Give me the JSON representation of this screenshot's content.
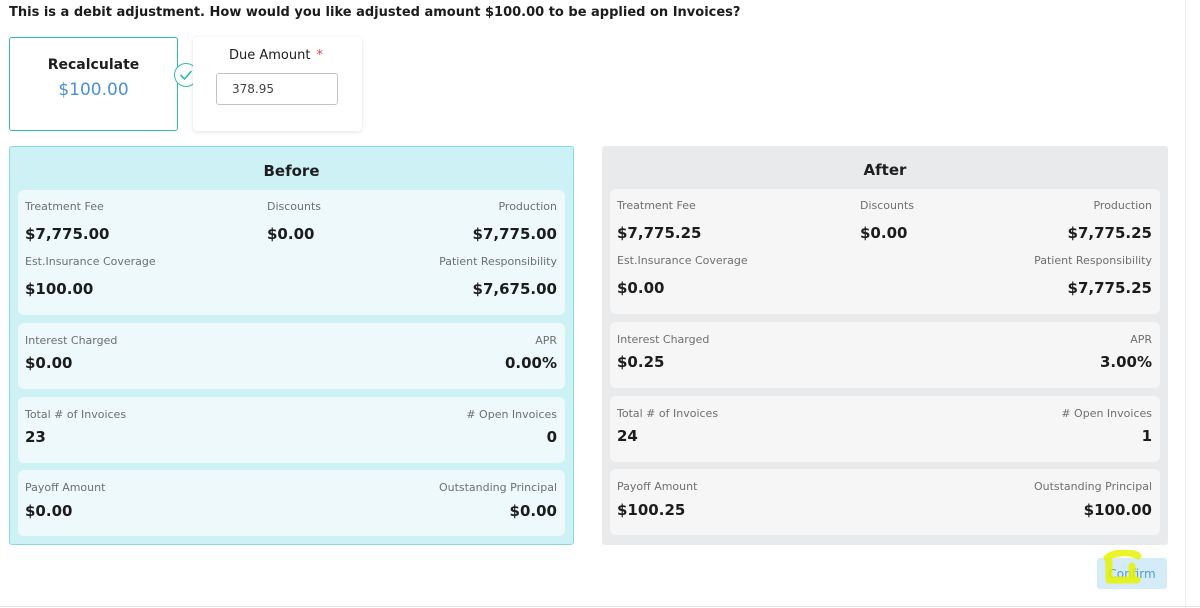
{
  "question": "This is a debit adjustment. How would you like adjusted amount $100.00 to be applied on Invoices?",
  "recalculate": {
    "title": "Recalculate",
    "amount": "$100.00"
  },
  "due_amount": {
    "label": "Due Amount",
    "required_mark": "*",
    "value": "378.95"
  },
  "before": {
    "title": "Before",
    "treatment_fee": {
      "label": "Treatment Fee",
      "value": "$7,775.00"
    },
    "discounts": {
      "label": "Discounts",
      "value": "$0.00"
    },
    "production": {
      "label": "Production",
      "value": "$7,775.00"
    },
    "est_insurance": {
      "label": "Est.Insurance Coverage",
      "value": "$100.00"
    },
    "patient_resp": {
      "label": "Patient Responsibility",
      "value": "$7,675.00"
    },
    "interest": {
      "label": "Interest Charged",
      "value": "$0.00"
    },
    "apr": {
      "label": "APR",
      "value": "0.00%"
    },
    "total_invoices": {
      "label": "Total # of Invoices",
      "value": "23"
    },
    "open_invoices": {
      "label": "# Open Invoices",
      "value": "0"
    },
    "payoff": {
      "label": "Payoff Amount",
      "value": "$0.00"
    },
    "outstanding": {
      "label": "Outstanding Principal",
      "value": "$0.00"
    }
  },
  "after": {
    "title": "After",
    "treatment_fee": {
      "label": "Treatment Fee",
      "value": "$7,775.25"
    },
    "discounts": {
      "label": "Discounts",
      "value": "$0.00"
    },
    "production": {
      "label": "Production",
      "value": "$7,775.25"
    },
    "est_insurance": {
      "label": "Est.Insurance Coverage",
      "value": "$0.00"
    },
    "patient_resp": {
      "label": "Patient Responsibility",
      "value": "$7,775.25"
    },
    "interest": {
      "label": "Interest Charged",
      "value": "$0.25"
    },
    "apr": {
      "label": "APR",
      "value": "3.00%"
    },
    "total_invoices": {
      "label": "Total # of Invoices",
      "value": "24"
    },
    "open_invoices": {
      "label": "# Open Invoices",
      "value": "1"
    },
    "payoff": {
      "label": "Payoff Amount",
      "value": "$100.25"
    },
    "outstanding": {
      "label": "Outstanding Principal",
      "value": "$100.00"
    }
  },
  "confirm_label": "Confirm",
  "colors": {
    "accent_teal": "#2fbfa0",
    "amount_blue": "#4a90d9",
    "before_bg": "#cdf1f4",
    "after_bg": "#e9eaeb",
    "highlight": "#e6f200"
  },
  "icons": {
    "selected": "check-circle-icon",
    "annotation": "highlight-mark"
  }
}
